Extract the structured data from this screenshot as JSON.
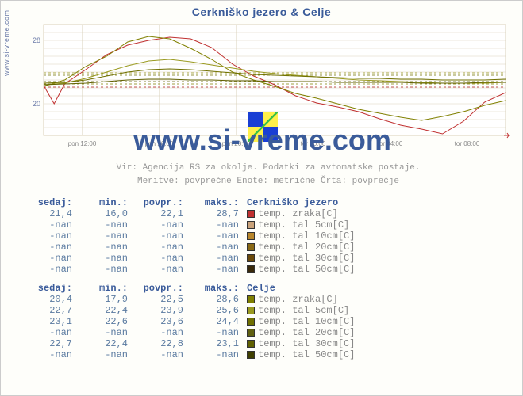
{
  "title": "Cerkniško jezero & Celje",
  "ylabel_text": "www.si-vreme.com",
  "watermark_url": "www.si-vreme.com",
  "meta_line1": "Vir: Agencija RS za okolje. Podatki za avtomatske postaje.",
  "meta_line2": "Meritve: povprečne   Enote: metrične   Črta: povprečje",
  "chart": {
    "type": "line",
    "background_color": "#fefefa",
    "plot_bg": "#ffffff",
    "grid_color": "#d9d0bb",
    "axis_color": "#888888",
    "ylim": [
      16,
      30
    ],
    "yticks": [
      20,
      28
    ],
    "ytick_labels": [
      "20",
      "28"
    ],
    "x_categories": [
      "pon 12:00",
      "pon 16:00",
      "pon 20:00",
      "tor 00:00",
      "tor 04:00",
      "tor 08:00"
    ],
    "x_range": [
      0,
      22
    ],
    "avg_lines": [
      {
        "y": 22.1,
        "color": "#b02020"
      },
      {
        "y": 22.5,
        "color": "#808000"
      },
      {
        "y": 23.9,
        "color": "#9a9a20"
      },
      {
        "y": 23.6,
        "color": "#707000"
      },
      {
        "y": 22.8,
        "color": "#606000"
      }
    ],
    "series": [
      {
        "name": "Cerkniško temp zraka",
        "color": "#c03030",
        "width": 1.0,
        "points": [
          [
            0,
            22.3
          ],
          [
            0.5,
            20.0
          ],
          [
            1,
            22.5
          ],
          [
            2,
            24.3
          ],
          [
            3,
            26.2
          ],
          [
            4,
            27.4
          ],
          [
            5,
            28.0
          ],
          [
            6,
            28.4
          ],
          [
            7,
            28.2
          ],
          [
            8,
            27.1
          ],
          [
            9,
            25.0
          ],
          [
            10,
            23.5
          ],
          [
            11,
            22.4
          ],
          [
            12,
            21.0
          ],
          [
            13,
            20.1
          ],
          [
            14,
            19.6
          ],
          [
            15,
            19.0
          ],
          [
            16,
            18.1
          ],
          [
            17,
            17.3
          ],
          [
            18,
            16.8
          ],
          [
            19,
            16.2
          ],
          [
            20,
            17.8
          ],
          [
            21,
            20.2
          ],
          [
            22,
            21.4
          ]
        ]
      },
      {
        "name": "Celje temp zraka",
        "color": "#808000",
        "width": 1.0,
        "points": [
          [
            0,
            22.2
          ],
          [
            1,
            23.0
          ],
          [
            2,
            24.7
          ],
          [
            3,
            26.0
          ],
          [
            4,
            27.8
          ],
          [
            5,
            28.5
          ],
          [
            6,
            28.2
          ],
          [
            7,
            27.0
          ],
          [
            8,
            25.6
          ],
          [
            9,
            24.0
          ],
          [
            10,
            23.0
          ],
          [
            11,
            22.2
          ],
          [
            12,
            21.3
          ],
          [
            13,
            20.7
          ],
          [
            14,
            20.0
          ],
          [
            15,
            19.3
          ],
          [
            16,
            18.8
          ],
          [
            17,
            18.3
          ],
          [
            18,
            17.9
          ],
          [
            19,
            18.4
          ],
          [
            20,
            19.0
          ],
          [
            21,
            19.8
          ],
          [
            22,
            20.4
          ]
        ]
      },
      {
        "name": "Celje tal 5cm",
        "color": "#9a9a20",
        "width": 1.0,
        "points": [
          [
            0,
            22.4
          ],
          [
            1,
            22.6
          ],
          [
            2,
            23.2
          ],
          [
            3,
            24.0
          ],
          [
            4,
            24.8
          ],
          [
            5,
            25.4
          ],
          [
            6,
            25.6
          ],
          [
            7,
            25.3
          ],
          [
            8,
            24.9
          ],
          [
            9,
            24.5
          ],
          [
            10,
            24.1
          ],
          [
            11,
            23.8
          ],
          [
            12,
            23.6
          ],
          [
            13,
            23.4
          ],
          [
            14,
            23.2
          ],
          [
            15,
            23.0
          ],
          [
            16,
            22.9
          ],
          [
            17,
            22.8
          ],
          [
            18,
            22.7
          ],
          [
            19,
            22.6
          ],
          [
            20,
            22.6
          ],
          [
            21,
            22.6
          ],
          [
            22,
            22.7
          ]
        ]
      },
      {
        "name": "Celje tal 10cm",
        "color": "#707000",
        "width": 1.0,
        "points": [
          [
            0,
            22.6
          ],
          [
            1,
            22.7
          ],
          [
            2,
            23.0
          ],
          [
            3,
            23.5
          ],
          [
            4,
            24.0
          ],
          [
            5,
            24.3
          ],
          [
            6,
            24.4
          ],
          [
            7,
            24.3
          ],
          [
            8,
            24.1
          ],
          [
            9,
            23.9
          ],
          [
            10,
            23.7
          ],
          [
            11,
            23.6
          ],
          [
            12,
            23.5
          ],
          [
            13,
            23.4
          ],
          [
            14,
            23.3
          ],
          [
            15,
            23.2
          ],
          [
            16,
            23.2
          ],
          [
            17,
            23.1
          ],
          [
            18,
            23.1
          ],
          [
            19,
            23.0
          ],
          [
            20,
            23.0
          ],
          [
            21,
            23.0
          ],
          [
            22,
            23.1
          ]
        ]
      },
      {
        "name": "Celje tal 30cm",
        "color": "#606000",
        "width": 1.0,
        "points": [
          [
            0,
            22.4
          ],
          [
            1,
            22.5
          ],
          [
            2,
            22.6
          ],
          [
            3,
            22.8
          ],
          [
            4,
            23.0
          ],
          [
            5,
            23.1
          ],
          [
            6,
            23.1
          ],
          [
            7,
            23.0
          ],
          [
            8,
            23.0
          ],
          [
            9,
            22.9
          ],
          [
            10,
            22.9
          ],
          [
            11,
            22.8
          ],
          [
            12,
            22.8
          ],
          [
            13,
            22.8
          ],
          [
            14,
            22.7
          ],
          [
            15,
            22.7
          ],
          [
            16,
            22.7
          ],
          [
            17,
            22.7
          ],
          [
            18,
            22.6
          ],
          [
            19,
            22.6
          ],
          [
            20,
            22.6
          ],
          [
            21,
            22.7
          ],
          [
            22,
            22.7
          ]
        ]
      }
    ]
  },
  "table_headers": {
    "sedaj": "sedaj:",
    "min": "min.:",
    "povpr": "povpr.:",
    "maks": "maks.:"
  },
  "table1_title": "Cerkniško jezero",
  "table1": [
    {
      "sedaj": "21,4",
      "min": "16,0",
      "povpr": "22,1",
      "maks": "28,7",
      "label": "temp. zraka[C]",
      "sw": "#c03030"
    },
    {
      "sedaj": "-nan",
      "min": "-nan",
      "povpr": "-nan",
      "maks": "-nan",
      "label": "temp. tal  5cm[C]",
      "sw": "#c9a27a"
    },
    {
      "sedaj": "-nan",
      "min": "-nan",
      "povpr": "-nan",
      "maks": "-nan",
      "label": "temp. tal 10cm[C]",
      "sw": "#b8862b"
    },
    {
      "sedaj": "-nan",
      "min": "-nan",
      "povpr": "-nan",
      "maks": "-nan",
      "label": "temp. tal 20cm[C]",
      "sw": "#8a6914"
    },
    {
      "sedaj": "-nan",
      "min": "-nan",
      "povpr": "-nan",
      "maks": "-nan",
      "label": "temp. tal 30cm[C]",
      "sw": "#6b4a0a"
    },
    {
      "sedaj": "-nan",
      "min": "-nan",
      "povpr": "-nan",
      "maks": "-nan",
      "label": "temp. tal 50cm[C]",
      "sw": "#3a2a0a"
    }
  ],
  "table2_title": "Celje",
  "table2": [
    {
      "sedaj": "20,4",
      "min": "17,9",
      "povpr": "22,5",
      "maks": "28,6",
      "label": "temp. zraka[C]",
      "sw": "#808000"
    },
    {
      "sedaj": "22,7",
      "min": "22,4",
      "povpr": "23,9",
      "maks": "25,6",
      "label": "temp. tal  5cm[C]",
      "sw": "#9a9a20"
    },
    {
      "sedaj": "23,1",
      "min": "22,6",
      "povpr": "23,6",
      "maks": "24,4",
      "label": "temp. tal 10cm[C]",
      "sw": "#707000"
    },
    {
      "sedaj": "-nan",
      "min": "-nan",
      "povpr": "-nan",
      "maks": "-nan",
      "label": "temp. tal 20cm[C]",
      "sw": "#606010"
    },
    {
      "sedaj": "22,7",
      "min": "22,4",
      "povpr": "22,8",
      "maks": "23,1",
      "label": "temp. tal 30cm[C]",
      "sw": "#606000"
    },
    {
      "sedaj": "-nan",
      "min": "-nan",
      "povpr": "-nan",
      "maks": "-nan",
      "label": "temp. tal 50cm[C]",
      "sw": "#404000"
    }
  ]
}
